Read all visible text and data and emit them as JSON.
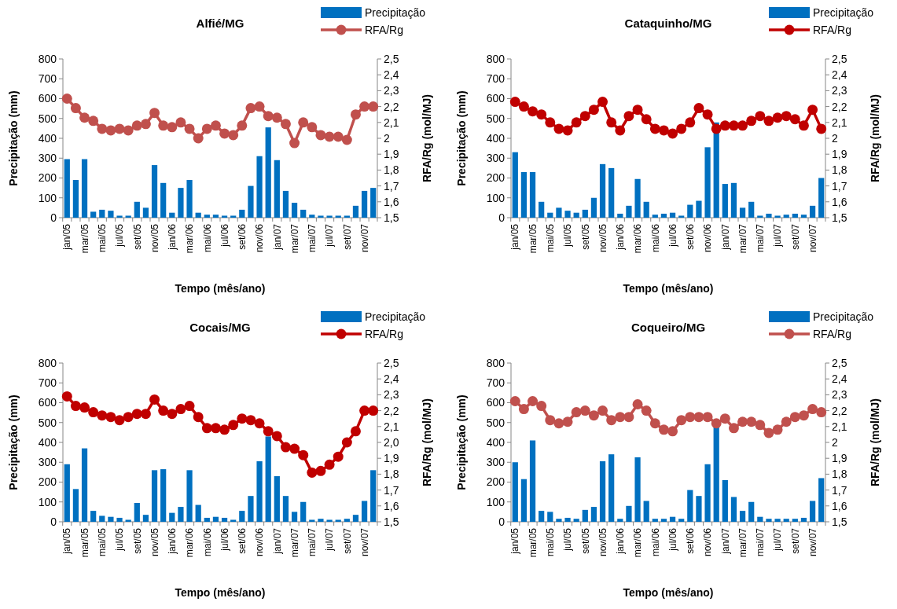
{
  "chart_data": [
    {
      "type": "bar",
      "title": "Alfié/MG",
      "xlabel": "Tempo (mês/ano)",
      "ylabel": "Precipitação (mm)",
      "y2label": "RFA/Rg (mol/MJ)",
      "legend": "top right",
      "marker": "circle",
      "categories": [
        "jan/05",
        null,
        "mar/05",
        null,
        "mai/05",
        null,
        "jul/05",
        null,
        "set/05",
        null,
        "nov/05",
        null,
        "jan/06",
        null,
        "mar/06",
        null,
        "mai/06",
        null,
        "jul/06",
        null,
        "set/06",
        null,
        "nov/06",
        null,
        "jan/07",
        null,
        "mar/07",
        null,
        "mai/07",
        null,
        "jul/07",
        null,
        "set/07",
        null,
        "nov/07",
        null
      ],
      "series": [
        {
          "name": "Precipitação",
          "color": "#0070c0",
          "values": [
            295,
            190,
            295,
            30,
            40,
            35,
            10,
            10,
            80,
            50,
            265,
            175,
            25,
            150,
            190,
            25,
            15,
            15,
            10,
            10,
            40,
            160,
            310,
            455,
            290,
            135,
            75,
            40,
            15,
            10,
            10,
            10,
            10,
            60,
            135,
            150
          ]
        },
        {
          "name": "RFA/Rg",
          "type": "line",
          "axis": "y2",
          "color": "#c0504d",
          "values": [
            2.25,
            2.19,
            2.13,
            2.11,
            2.06,
            2.05,
            2.06,
            2.05,
            2.08,
            2.09,
            2.16,
            2.08,
            2.07,
            2.1,
            2.06,
            2.0,
            2.06,
            2.08,
            2.03,
            2.02,
            2.08,
            2.19,
            2.2,
            2.14,
            2.13,
            2.09,
            1.97,
            2.1,
            2.07,
            2.02,
            2.01,
            2.01,
            1.99,
            2.15,
            2.2,
            2.2
          ]
        }
      ],
      "ylim": [
        0,
        800
      ],
      "yticks": [
        0,
        100,
        200,
        300,
        400,
        500,
        600,
        700,
        800
      ],
      "y2lim": [
        1.5,
        2.5
      ],
      "y2ticks": [
        {
          "value": 1.5,
          "label": "1,5"
        },
        {
          "value": 1.6,
          "label": "1,6"
        },
        {
          "value": 1.7,
          "label": "1,7"
        },
        {
          "value": 1.8,
          "label": "1,8"
        },
        {
          "value": 1.9,
          "label": "1,9"
        },
        {
          "value": 2,
          "label": "2"
        },
        {
          "value": 2.1,
          "label": "2,1"
        },
        {
          "value": 2.2,
          "label": "2,2"
        },
        {
          "value": 2.3,
          "label": "2,3"
        },
        {
          "value": 2.4,
          "label": "2,4"
        },
        {
          "value": 2.5,
          "label": "2,5"
        }
      ]
    },
    {
      "type": "bar",
      "title": "Cataquinho/MG",
      "xlabel": "Tempo (mês/ano)",
      "ylabel": "Precipitação (mm)",
      "y2label": "RFA/Rg (mol/MJ)",
      "legend": "top right",
      "marker": "circle",
      "categories": [
        "jan/05",
        null,
        "mar/05",
        null,
        "mai/05",
        null,
        "jul/05",
        null,
        "set/05",
        null,
        "nov/05",
        null,
        "jan/06",
        null,
        "mar/06",
        null,
        "mai/06",
        null,
        "jul/06",
        null,
        "set/06",
        null,
        "nov/06",
        null,
        "jan/07",
        null,
        "mar/07",
        null,
        "mai/07",
        null,
        "jul/07",
        null,
        "set/07",
        null,
        "nov/07",
        null
      ],
      "series": [
        {
          "name": "Precipitação",
          "color": "#0070c0",
          "values": [
            330,
            230,
            230,
            80,
            25,
            50,
            35,
            25,
            40,
            100,
            270,
            250,
            20,
            60,
            195,
            80,
            15,
            20,
            25,
            10,
            65,
            85,
            355,
            480,
            170,
            175,
            50,
            80,
            10,
            20,
            10,
            15,
            20,
            15,
            60,
            200
          ]
        },
        {
          "name": "RFA/Rg",
          "type": "line",
          "axis": "y2",
          "color": "#c00000",
          "values": [
            2.23,
            2.2,
            2.17,
            2.15,
            2.1,
            2.06,
            2.05,
            2.1,
            2.14,
            2.18,
            2.23,
            2.1,
            2.05,
            2.14,
            2.18,
            2.12,
            2.06,
            2.05,
            2.03,
            2.06,
            2.1,
            2.19,
            2.15,
            2.06,
            2.08,
            2.08,
            2.08,
            2.11,
            2.14,
            2.11,
            2.13,
            2.14,
            2.12,
            2.08,
            2.18,
            2.06
          ]
        }
      ],
      "ylim": [
        0,
        800
      ],
      "yticks": [
        0,
        100,
        200,
        300,
        400,
        500,
        600,
        700,
        800
      ],
      "y2lim": [
        1.5,
        2.5
      ],
      "y2ticks": [
        {
          "value": 1.5,
          "label": "1,5"
        },
        {
          "value": 1.6,
          "label": "1,6"
        },
        {
          "value": 1.7,
          "label": "1,7"
        },
        {
          "value": 1.8,
          "label": "1,8"
        },
        {
          "value": 1.9,
          "label": "1,9"
        },
        {
          "value": 2,
          "label": "2"
        },
        {
          "value": 2.1,
          "label": "2,1"
        },
        {
          "value": 2.2,
          "label": "2,2"
        },
        {
          "value": 2.3,
          "label": "2,3"
        },
        {
          "value": 2.4,
          "label": "2,4"
        },
        {
          "value": 2.5,
          "label": "2,5"
        }
      ]
    },
    {
      "type": "bar",
      "title": "Cocais/MG",
      "xlabel": "Tempo (mês/ano)",
      "ylabel": "Precipitação (mm)",
      "y2label": "RFA/Rg (mol/MJ)",
      "legend": "top right",
      "marker": "circle",
      "categories": [
        "jan/05",
        null,
        "mar/05",
        null,
        "mai/05",
        null,
        "jul/05",
        null,
        "set/05",
        null,
        "nov/05",
        null,
        "jan/06",
        null,
        "mar/06",
        null,
        "mai/06",
        null,
        "jul/06",
        null,
        "set/06",
        null,
        "nov/06",
        null,
        "jan/07",
        null,
        "mar/07",
        null,
        "mai/07",
        null,
        "jul/07",
        null,
        "set/07",
        null,
        "nov/07",
        null
      ],
      "series": [
        {
          "name": "Precipitação",
          "color": "#0070c0",
          "values": [
            290,
            165,
            370,
            55,
            30,
            25,
            20,
            10,
            95,
            35,
            260,
            265,
            45,
            75,
            260,
            85,
            20,
            25,
            20,
            10,
            55,
            130,
            305,
            430,
            230,
            130,
            50,
            100,
            10,
            15,
            10,
            10,
            15,
            35,
            105,
            260
          ]
        },
        {
          "name": "RFA/Rg",
          "type": "line",
          "axis": "y2",
          "color": "#c00000",
          "values": [
            2.29,
            2.23,
            2.22,
            2.19,
            2.17,
            2.16,
            2.14,
            2.16,
            2.18,
            2.18,
            2.27,
            2.2,
            2.18,
            2.21,
            2.23,
            2.16,
            2.09,
            2.09,
            2.08,
            2.11,
            2.15,
            2.14,
            2.12,
            2.07,
            2.04,
            1.97,
            1.96,
            1.92,
            1.81,
            1.82,
            1.86,
            1.91,
            2.0,
            2.07,
            2.2,
            2.2
          ]
        }
      ],
      "ylim": [
        0,
        800
      ],
      "yticks": [
        0,
        100,
        200,
        300,
        400,
        500,
        600,
        700,
        800
      ],
      "y2lim": [
        1.5,
        2.5
      ],
      "y2ticks": [
        {
          "value": 1.5,
          "label": "1,5"
        },
        {
          "value": 1.6,
          "label": "1,6"
        },
        {
          "value": 1.7,
          "label": "1,7"
        },
        {
          "value": 1.8,
          "label": "1,8"
        },
        {
          "value": 1.9,
          "label": "1,9"
        },
        {
          "value": 2,
          "label": "2,0"
        },
        {
          "value": 2.1,
          "label": "2,1"
        },
        {
          "value": 2.2,
          "label": "2,2"
        },
        {
          "value": 2.3,
          "label": "2,3"
        },
        {
          "value": 2.4,
          "label": "2,4"
        },
        {
          "value": 2.5,
          "label": "2,5"
        }
      ]
    },
    {
      "type": "bar",
      "title": "Coqueiro/MG",
      "xlabel": "Tempo (mês/ano)",
      "ylabel": "Precipitação (mm)",
      "y2label": "RFA/Rg (mol/MJ)",
      "legend": "top right",
      "marker": "circle",
      "categories": [
        "jan/05",
        null,
        "mar/05",
        null,
        "mai/05",
        null,
        "jul/05",
        null,
        "set/05",
        null,
        "nov/05",
        null,
        "jan/06",
        null,
        "mar/06",
        null,
        "mai/06",
        null,
        "jul/06",
        null,
        "set/06",
        null,
        "nov/06",
        null,
        "jan/07",
        null,
        "mar/07",
        null,
        "mai/07",
        null,
        "jul/07",
        null,
        "set/07",
        null,
        "nov/07",
        null
      ],
      "series": [
        {
          "name": "Precipitação",
          "color": "#0070c0",
          "values": [
            300,
            215,
            410,
            55,
            50,
            15,
            20,
            15,
            60,
            75,
            305,
            340,
            15,
            80,
            325,
            105,
            15,
            15,
            25,
            15,
            160,
            130,
            290,
            480,
            210,
            125,
            55,
            100,
            25,
            15,
            15,
            15,
            15,
            20,
            105,
            220
          ]
        },
        {
          "name": "RFA/Rg",
          "type": "line",
          "axis": "y2",
          "color": "#c0504d",
          "values": [
            2.26,
            2.21,
            2.26,
            2.23,
            2.14,
            2.12,
            2.13,
            2.19,
            2.2,
            2.17,
            2.2,
            2.14,
            2.16,
            2.16,
            2.24,
            2.2,
            2.12,
            2.08,
            2.07,
            2.14,
            2.16,
            2.16,
            2.16,
            2.12,
            2.15,
            2.09,
            2.13,
            2.13,
            2.11,
            2.06,
            2.08,
            2.13,
            2.16,
            2.17,
            2.21,
            2.19
          ]
        }
      ],
      "ylim": [
        0,
        800
      ],
      "yticks": [
        0,
        100,
        200,
        300,
        400,
        500,
        600,
        700,
        800
      ],
      "y2lim": [
        1.5,
        2.5
      ],
      "y2ticks": [
        {
          "value": 1.5,
          "label": "1,5"
        },
        {
          "value": 1.6,
          "label": "1,6"
        },
        {
          "value": 1.7,
          "label": "1,7"
        },
        {
          "value": 1.8,
          "label": "1,8"
        },
        {
          "value": 1.9,
          "label": "1,9"
        },
        {
          "value": 2,
          "label": "2"
        },
        {
          "value": 2.1,
          "label": "2,1"
        },
        {
          "value": 2.2,
          "label": "2,2"
        },
        {
          "value": 2.3,
          "label": "2,3"
        },
        {
          "value": 2.4,
          "label": "2,4"
        },
        {
          "value": 2.5,
          "label": "2,5"
        }
      ]
    }
  ]
}
